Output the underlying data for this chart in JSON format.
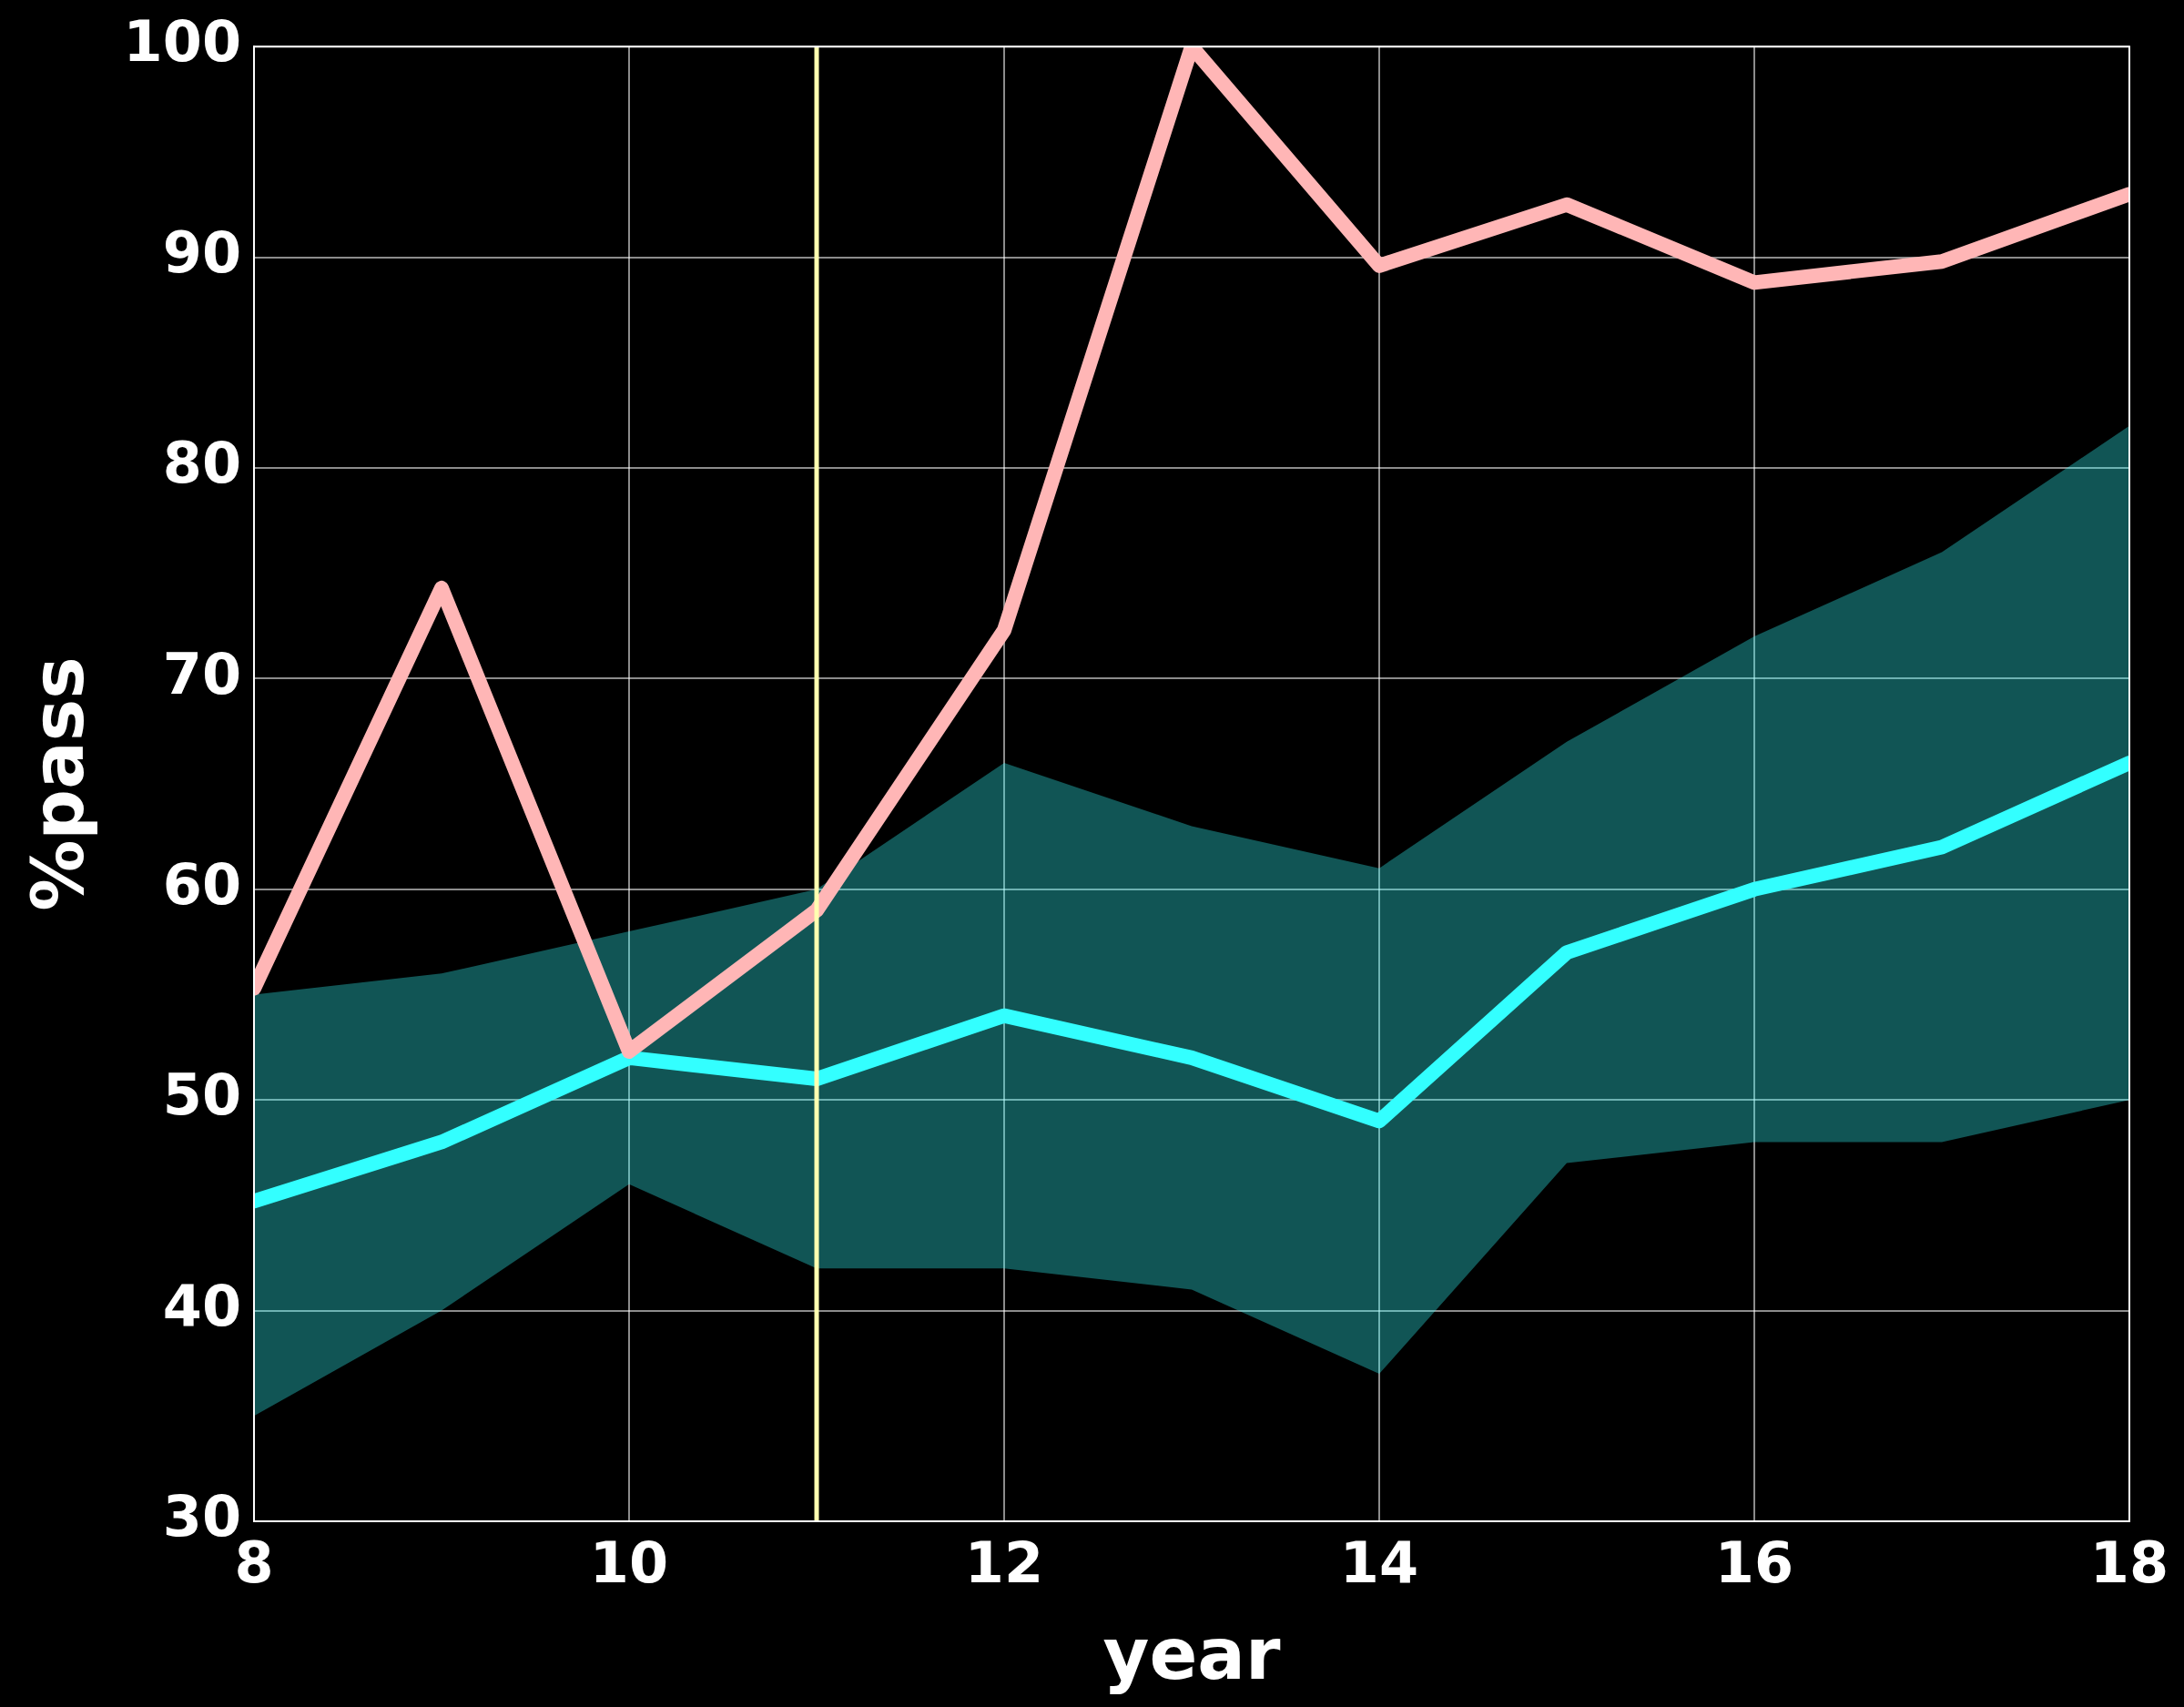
{
  "chart_data": {
    "type": "line",
    "xlabel": "year",
    "ylabel": "%pass",
    "x": [
      8,
      9,
      10,
      11,
      12,
      13,
      14,
      15,
      16,
      17,
      18
    ],
    "series": [
      {
        "color": "#ffb6b6",
        "values": [
          55.3,
          74.3,
          52.3,
          59,
          72.3,
          100,
          89.6,
          92.5,
          88.8,
          89.8,
          93
        ]
      },
      {
        "color": "#33ffff",
        "values": [
          45.2,
          48,
          52,
          51,
          54,
          52,
          49,
          57,
          60,
          62,
          66
        ],
        "lower": [
          35,
          40,
          46,
          42,
          42,
          41,
          37,
          47,
          48,
          48,
          50
        ],
        "upper": [
          55,
          56,
          58,
          60,
          66,
          63,
          61,
          67,
          72,
          76,
          82
        ]
      }
    ],
    "xlim": [
      8,
      18
    ],
    "xticks": [
      8,
      10,
      12,
      14,
      16,
      18
    ],
    "ylim": [
      30,
      100
    ],
    "yticks": [
      30,
      40,
      50,
      60,
      70,
      80,
      90,
      100
    ],
    "grid": true,
    "legend": false,
    "marker": "none",
    "line_style": "solid",
    "ref_lines": [
      {
        "axis": "x",
        "value": 11,
        "color": "#ffffb0"
      }
    ]
  }
}
